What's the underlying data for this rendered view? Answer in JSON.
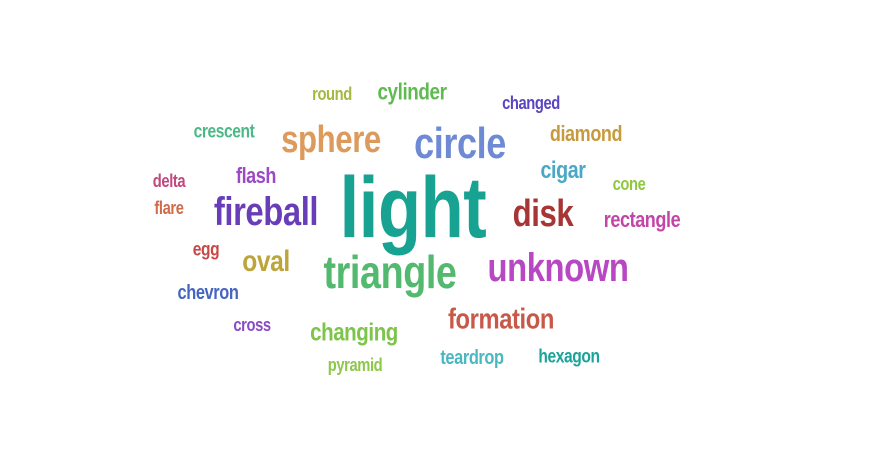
{
  "words": [
    {
      "text": "light",
      "color": "#17a291"
    },
    {
      "text": "triangle",
      "color": "#52b96e"
    },
    {
      "text": "unknown",
      "color": "#b847c3"
    },
    {
      "text": "fireball",
      "color": "#6a3db8"
    },
    {
      "text": "circle",
      "color": "#6f8ad5"
    },
    {
      "text": "sphere",
      "color": "#dc9a5c"
    },
    {
      "text": "disk",
      "color": "#a73535"
    },
    {
      "text": "formation",
      "color": "#c85848"
    },
    {
      "text": "oval",
      "color": "#bca53a"
    },
    {
      "text": "changing",
      "color": "#7cc44a"
    },
    {
      "text": "diamond",
      "color": "#c89a3e"
    },
    {
      "text": "cylinder",
      "color": "#5fbb50"
    },
    {
      "text": "cigar",
      "color": "#4aa8c7"
    },
    {
      "text": "rectangle",
      "color": "#c245a7"
    },
    {
      "text": "teardrop",
      "color": "#4ab8c0"
    },
    {
      "text": "hexagon",
      "color": "#1aa39a"
    },
    {
      "text": "chevron",
      "color": "#4566c0"
    },
    {
      "text": "crescent",
      "color": "#4db887"
    },
    {
      "text": "flash",
      "color": "#9a4ac4"
    },
    {
      "text": "changed",
      "color": "#5a45c2"
    },
    {
      "text": "pyramid",
      "color": "#8ec84a"
    },
    {
      "text": "round",
      "color": "#a5b83f"
    },
    {
      "text": "cone",
      "color": "#8fc83e"
    },
    {
      "text": "delta",
      "color": "#c24880"
    },
    {
      "text": "flare",
      "color": "#d06a4b"
    },
    {
      "text": "egg",
      "color": "#c84848"
    },
    {
      "text": "cross",
      "color": "#8a4ac4"
    }
  ]
}
